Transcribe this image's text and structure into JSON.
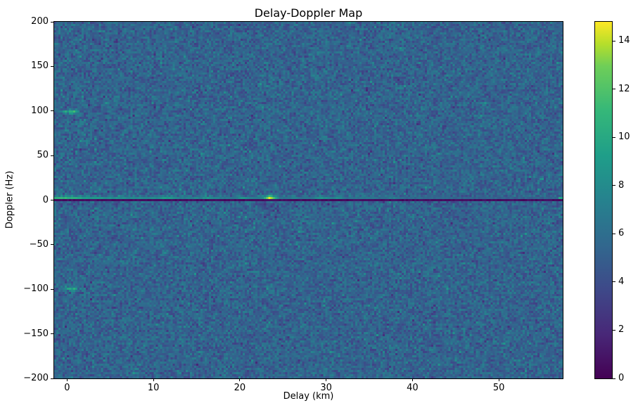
{
  "figure": {
    "title": "Delay-Doppler Map",
    "xlabel": "Delay (km)",
    "ylabel": "Doppler (Hz)"
  },
  "colors": {
    "background": "#ffffff",
    "text": "#000000",
    "spine": "#000000"
  },
  "chart_data": {
    "type": "heatmap",
    "title": "Delay-Doppler Map",
    "xlabel": "Delay (km)",
    "ylabel": "Doppler (Hz)",
    "xlim": [
      -1.5,
      57.4
    ],
    "ylim": [
      -200,
      200
    ],
    "x_ticks": [
      0,
      10,
      20,
      30,
      40,
      50
    ],
    "y_ticks": [
      200,
      150,
      100,
      50,
      0,
      -50,
      -100,
      -150,
      -200
    ],
    "grid_on": false,
    "colorbar": {
      "vmin": 0,
      "vmax": 14.8,
      "ticks": [
        0,
        2,
        4,
        6,
        8,
        10,
        12,
        14
      ]
    },
    "colormap": {
      "name": "viridis",
      "anchors": [
        {
          "t": 0.0,
          "color": "#440154"
        },
        {
          "t": 0.125,
          "color": "#482878"
        },
        {
          "t": 0.25,
          "color": "#3e4989"
        },
        {
          "t": 0.375,
          "color": "#31688e"
        },
        {
          "t": 0.5,
          "color": "#26828e"
        },
        {
          "t": 0.625,
          "color": "#1f9e89"
        },
        {
          "t": 0.75,
          "color": "#35b779"
        },
        {
          "t": 0.875,
          "color": "#6ece58"
        },
        {
          "t": 0.9375,
          "color": "#b5de2b"
        },
        {
          "t": 1.0,
          "color": "#fde725"
        }
      ]
    },
    "grid": {
      "nx": 240,
      "ny": 169
    },
    "noise": {
      "seed": 1337,
      "base_min": 3.0,
      "rand_amp_1": 2.3,
      "rand_amp_2": 2.3,
      "speckle_bright_prob": 0.03,
      "speckle_bright_boost": 1.5,
      "speckle_dark_prob": 0.03,
      "speckle_dark_drop": 1.3
    },
    "features": {
      "zero_doppler_line": {
        "doppler_hz": 0,
        "value_min": 0.2,
        "value_rand": 0.8
      },
      "specular_band": {
        "doppler_hz": 2.4,
        "base_value": 4.6,
        "base_rand": 1.2,
        "amp": 4.0,
        "decay_km": 20,
        "max_delay_km": 45,
        "upper_row_bleed": 0.35
      },
      "band_blobs": [
        {
          "delay_km": 0.0,
          "amp": 1.6,
          "sigma_km": 1.0
        },
        {
          "delay_km": 11.5,
          "amp": 1.8,
          "sigma_km": 0.6
        },
        {
          "delay_km": 16.5,
          "amp": 1.5,
          "sigma_km": 0.6
        },
        {
          "delay_km": 20.5,
          "amp": 1.8,
          "sigma_km": 0.5
        },
        {
          "delay_km": 26.3,
          "amp": 1.2,
          "sigma_km": 0.4
        },
        {
          "delay_km": 29.5,
          "amp": 2.2,
          "sigma_km": 0.7
        },
        {
          "delay_km": 31.5,
          "amp": 1.8,
          "sigma_km": 0.5
        },
        {
          "delay_km": 34.8,
          "amp": 1.2,
          "sigma_km": 0.5
        },
        {
          "delay_km": 37.8,
          "amp": 1.3,
          "sigma_km": 0.5
        }
      ],
      "main_peak": {
        "delay_km": 23.5,
        "doppler_hz": 2.4,
        "amp": 8.0,
        "sigma_km": 0.45,
        "sigma_hz": 2.6,
        "peak_value": 14.8
      },
      "dark_smudge": {
        "delay_km": 23.6,
        "doppler_hz": -6,
        "amp": -1.3,
        "sigma_km": 0.6,
        "sigma_hz": 4.5
      },
      "ambiguity_spots": [
        {
          "delay_km": 0.4,
          "doppler_hz": 100,
          "amp": 5.2,
          "sigma_km": 0.7
        },
        {
          "delay_km": 0.4,
          "doppler_hz": -100,
          "amp": 5.2,
          "sigma_km": 0.7
        }
      ],
      "edge_dot": {
        "delay_km": 57.2,
        "doppler_hz": 2.4,
        "amp": 4.5
      }
    }
  }
}
